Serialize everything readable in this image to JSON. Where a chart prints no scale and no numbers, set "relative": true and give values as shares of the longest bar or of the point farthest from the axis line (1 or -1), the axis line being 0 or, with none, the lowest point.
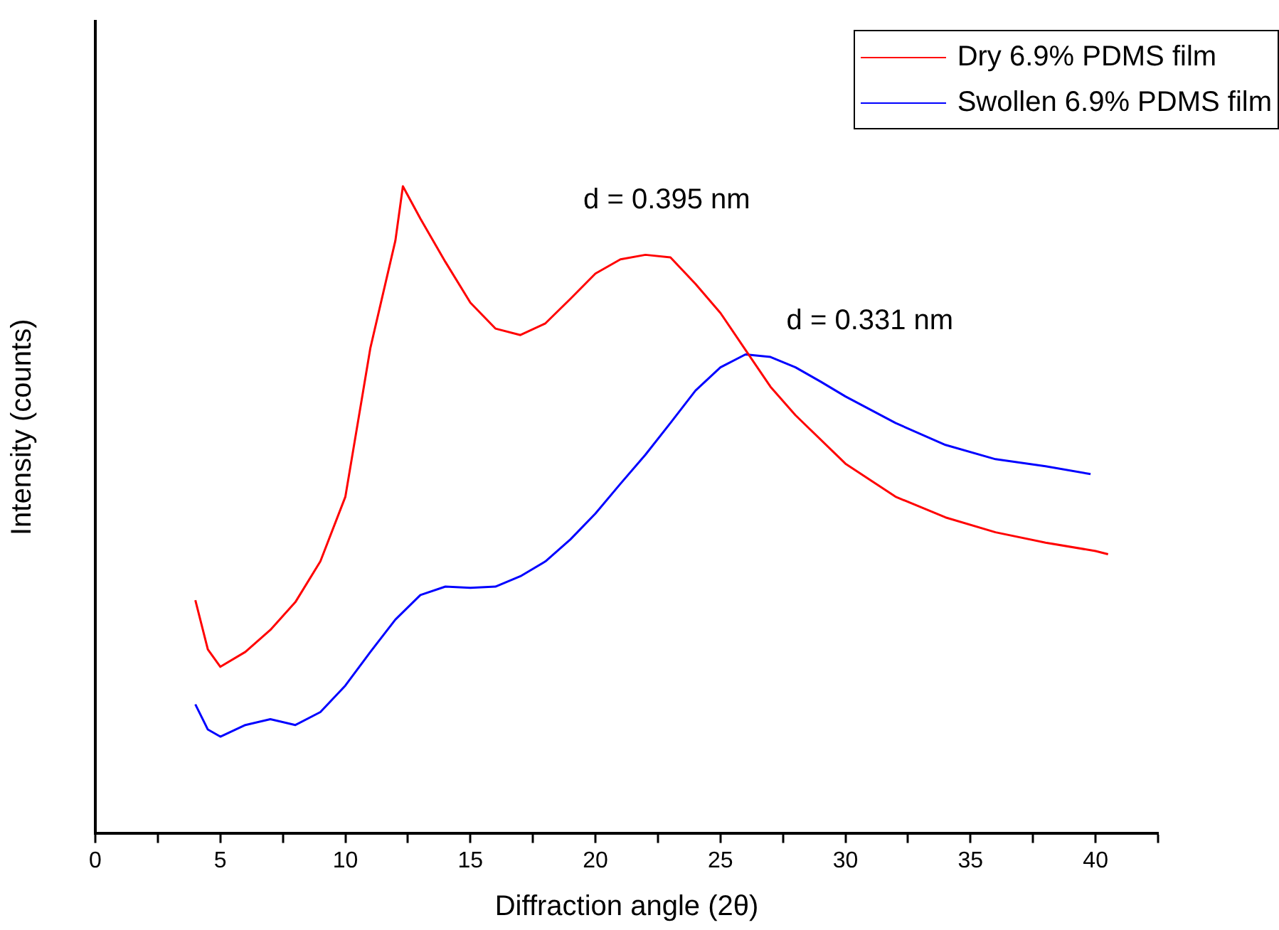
{
  "chart_data": {
    "type": "line",
    "xlabel": "Diffraction angle (2θ)",
    "ylabel": "Intensity (counts)",
    "relative": true,
    "xlim": [
      0,
      42.5
    ],
    "xticks": [
      0,
      {
        "value": 2.5,
        "label": null
      },
      5,
      {
        "value": 7.5,
        "label": null
      },
      10,
      {
        "value": 12.5,
        "label": null
      },
      15,
      {
        "value": 17.5,
        "label": null
      },
      20,
      {
        "value": 22.5,
        "label": null
      },
      25,
      {
        "value": 27.5,
        "label": null
      },
      30,
      {
        "value": 32.5,
        "label": null
      },
      35,
      {
        "value": 37.5,
        "label": null
      },
      40,
      {
        "value": 42.5,
        "label": null
      }
    ],
    "tick_labels": "x",
    "grid": false,
    "legend": "top right",
    "marker": "none",
    "line_style": "solid",
    "series": [
      {
        "name": "Dry 6.9% PDMS film",
        "color": "#ff0000",
        "x": [
          4,
          4.5,
          5,
          6,
          7,
          8,
          9,
          10,
          11,
          12,
          12.3,
          13,
          14,
          15,
          16,
          17,
          18,
          19,
          20,
          21,
          22,
          23,
          24,
          25,
          26,
          27,
          28,
          30,
          32,
          34,
          36,
          38,
          40,
          40.5
        ],
        "values": [
          0.36,
          0.284,
          0.257,
          0.28,
          0.314,
          0.357,
          0.42,
          0.52,
          0.75,
          0.916,
          1,
          0.95,
          0.883,
          0.82,
          0.78,
          0.77,
          0.788,
          0.826,
          0.865,
          0.887,
          0.894,
          0.89,
          0.849,
          0.804,
          0.747,
          0.69,
          0.646,
          0.571,
          0.52,
          0.488,
          0.465,
          0.449,
          0.436,
          0.431
        ]
      },
      {
        "name": "Swollen 6.9% PDMS film",
        "color": "#0000ff",
        "x": [
          4,
          4.5,
          5,
          6,
          7,
          8,
          9,
          10,
          11,
          12,
          13,
          14,
          15,
          16,
          17,
          18,
          19,
          20,
          21,
          22,
          23,
          24,
          25,
          26,
          27,
          28,
          29,
          30,
          32,
          34,
          36,
          38,
          39.8
        ],
        "values": [
          0.199,
          0.16,
          0.149,
          0.167,
          0.176,
          0.167,
          0.187,
          0.228,
          0.28,
          0.33,
          0.368,
          0.381,
          0.379,
          0.381,
          0.397,
          0.42,
          0.454,
          0.494,
          0.54,
          0.585,
          0.634,
          0.684,
          0.72,
          0.74,
          0.736,
          0.72,
          0.698,
          0.675,
          0.634,
          0.6,
          0.578,
          0.567,
          0.555
        ]
      }
    ],
    "annotations": [
      {
        "text": "d = 0.395 nm",
        "x": 22,
        "y": 0.894
      },
      {
        "text": "d = 0.331 nm",
        "x": 26.5,
        "y": 0.74
      }
    ]
  }
}
